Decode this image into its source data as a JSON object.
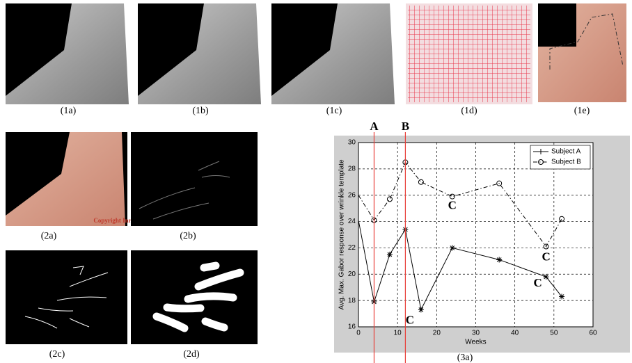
{
  "panels": {
    "p1a": "(1a)",
    "p1b": "(1b)",
    "p1c": "(1c)",
    "p1d": "(1d)",
    "p1e": "(1e)",
    "p2a": "(2a)",
    "p2b": "(2b)",
    "p2c": "(2c)",
    "p2d": "(2d)",
    "p3a": "(3a)"
  },
  "copyright": "Copyright Inria",
  "chart_data": {
    "type": "line",
    "x_label": "Weeks",
    "y_label": "Avg. Max. Gabor response over wrinkle template",
    "xlim": [
      0,
      60
    ],
    "xticks": [
      0,
      10,
      20,
      30,
      40,
      50,
      60
    ],
    "ylim": [
      16,
      30
    ],
    "yticks": [
      16,
      18,
      20,
      22,
      24,
      26,
      28,
      30
    ],
    "grid": true,
    "legend": "upper right",
    "series": [
      {
        "name": "Subject A",
        "color": "#000000",
        "marker": "star",
        "dash": "solid",
        "x": [
          0,
          4,
          8,
          12,
          16,
          24,
          36,
          48,
          52
        ],
        "values": [
          24.1,
          17.9,
          21.5,
          23.4,
          17.3,
          22.0,
          21.1,
          19.8,
          18.3
        ]
      },
      {
        "name": "Subject B",
        "color": "#000000",
        "marker": "circle",
        "dash": "dashdot",
        "x": [
          0,
          4,
          8,
          12,
          16,
          24,
          36,
          48,
          52
        ],
        "values": [
          26.0,
          24.1,
          25.7,
          28.5,
          27.0,
          25.9,
          26.9,
          22.1,
          24.2
        ]
      }
    ],
    "vlines": [
      {
        "label": "A",
        "x": 4,
        "color": "#e8403a"
      },
      {
        "label": "B",
        "x": 12,
        "color": "#e8403a"
      }
    ],
    "annotations": [
      "C",
      "C",
      "C",
      "C"
    ]
  }
}
